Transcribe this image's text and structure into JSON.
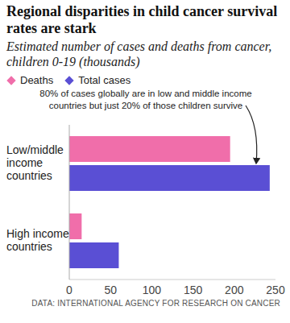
{
  "chart_data": {
    "type": "bar",
    "orientation": "horizontal",
    "title": "Regional disparities in child cancer survival rates are stark",
    "subtitle": "Estimated number of cases and deaths from cancer, children 0-19 (thousands)",
    "annotation": "80% of cases globally are in low and middle income countries but just 20% of those children survive",
    "source": "DATA: INTERNATIONAL AGENCY FOR RESEARCH ON CANCER",
    "categories": [
      "Low/middle income countries",
      "High income countries"
    ],
    "series": [
      {
        "name": "Deaths",
        "color": "#f06eaa",
        "values": [
          195,
          15
        ]
      },
      {
        "name": "Total cases",
        "color": "#5a4fd4",
        "values": [
          243,
          60
        ]
      }
    ],
    "xlim": [
      0,
      250
    ],
    "xticks": [
      0,
      50,
      100,
      150,
      200,
      250
    ],
    "grid": false,
    "legend": "top left"
  }
}
